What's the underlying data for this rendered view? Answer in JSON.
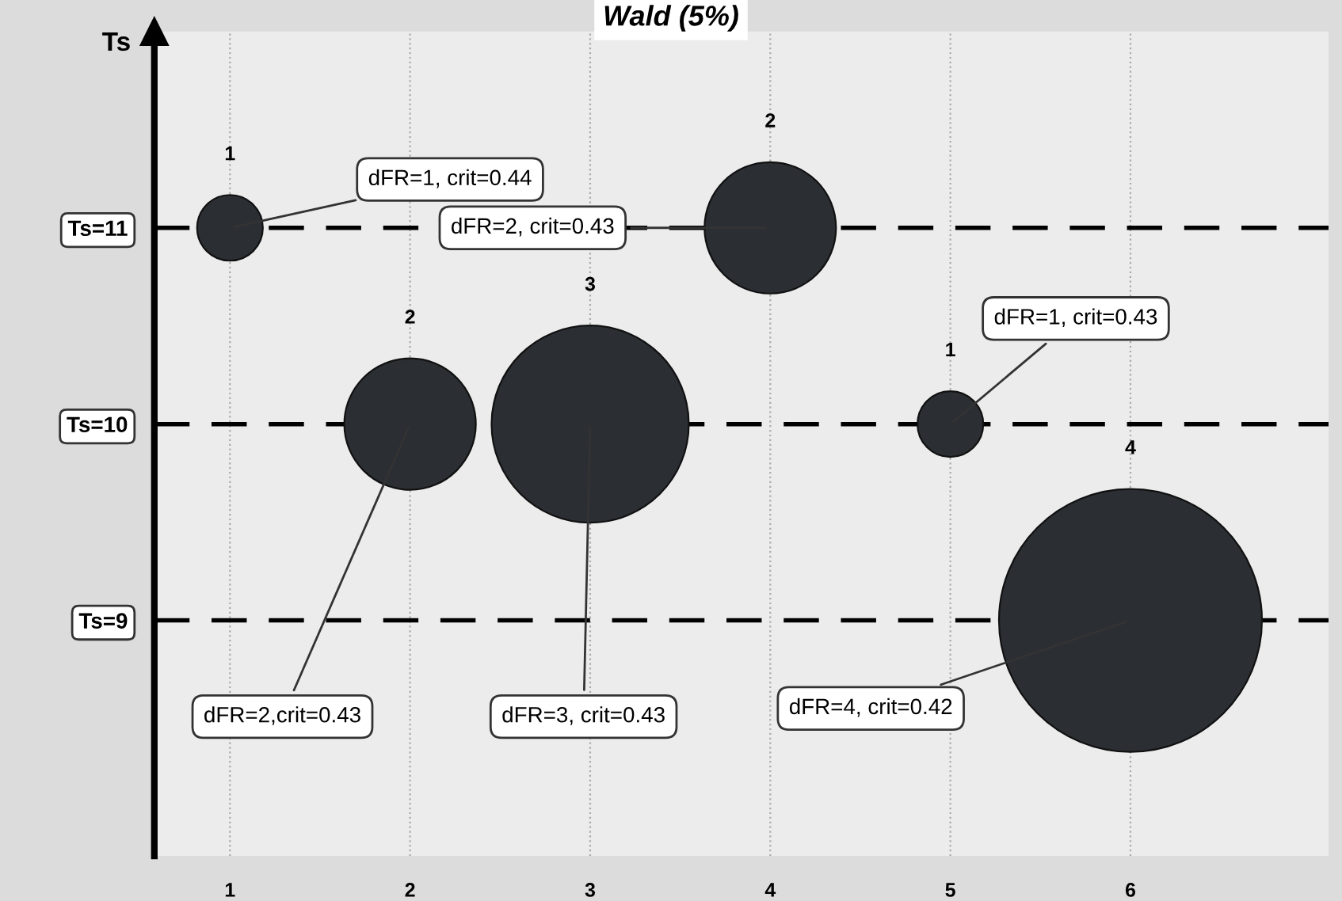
{
  "chart_data": {
    "type": "bubble",
    "title": "Wald (5%)",
    "ylabel": "Ts",
    "x": [
      1,
      2,
      3,
      4,
      5,
      6
    ],
    "values": [
      11,
      10,
      10,
      11,
      10,
      9
    ],
    "sizes": [
      0.0625,
      0.25,
      0.5625,
      0.25,
      0.0625,
      1
    ],
    "color": "#2b2f33",
    "xlim": [
      0.58,
      7.1
    ],
    "xticks": [
      1,
      2,
      3,
      4,
      5,
      6
    ],
    "ylim": [
      7.8,
      12
    ],
    "yticks": [
      {
        "value": 9,
        "label": "Ts=9"
      },
      {
        "value": 10,
        "label": "Ts=10"
      },
      {
        "value": 11,
        "label": "Ts=11"
      }
    ],
    "ref_lines": [
      {
        "axis": "y",
        "value": 9,
        "line_style": "dashed"
      },
      {
        "axis": "y",
        "value": 10,
        "line_style": "dashed"
      },
      {
        "axis": "y",
        "value": 11,
        "line_style": "dashed"
      }
    ],
    "grid": "x",
    "annotations": [
      "1",
      "2",
      "3",
      "2",
      "1",
      "4",
      {
        "text": "dFR=1, crit=0.44",
        "x": 1,
        "y": 11
      },
      {
        "text": "dFR=2,crit=0.43",
        "x": 2,
        "y": 10
      },
      {
        "text": "dFR=3, crit=0.43",
        "x": 3,
        "y": 10
      },
      {
        "text": "dFR=2, crit=0.43",
        "x": 4,
        "y": 11
      },
      {
        "text": "dFR=1, crit=0.43",
        "x": 5,
        "y": 10
      },
      {
        "text": "dFR=4, crit=0.42",
        "x": 6,
        "y": 9
      }
    ]
  }
}
